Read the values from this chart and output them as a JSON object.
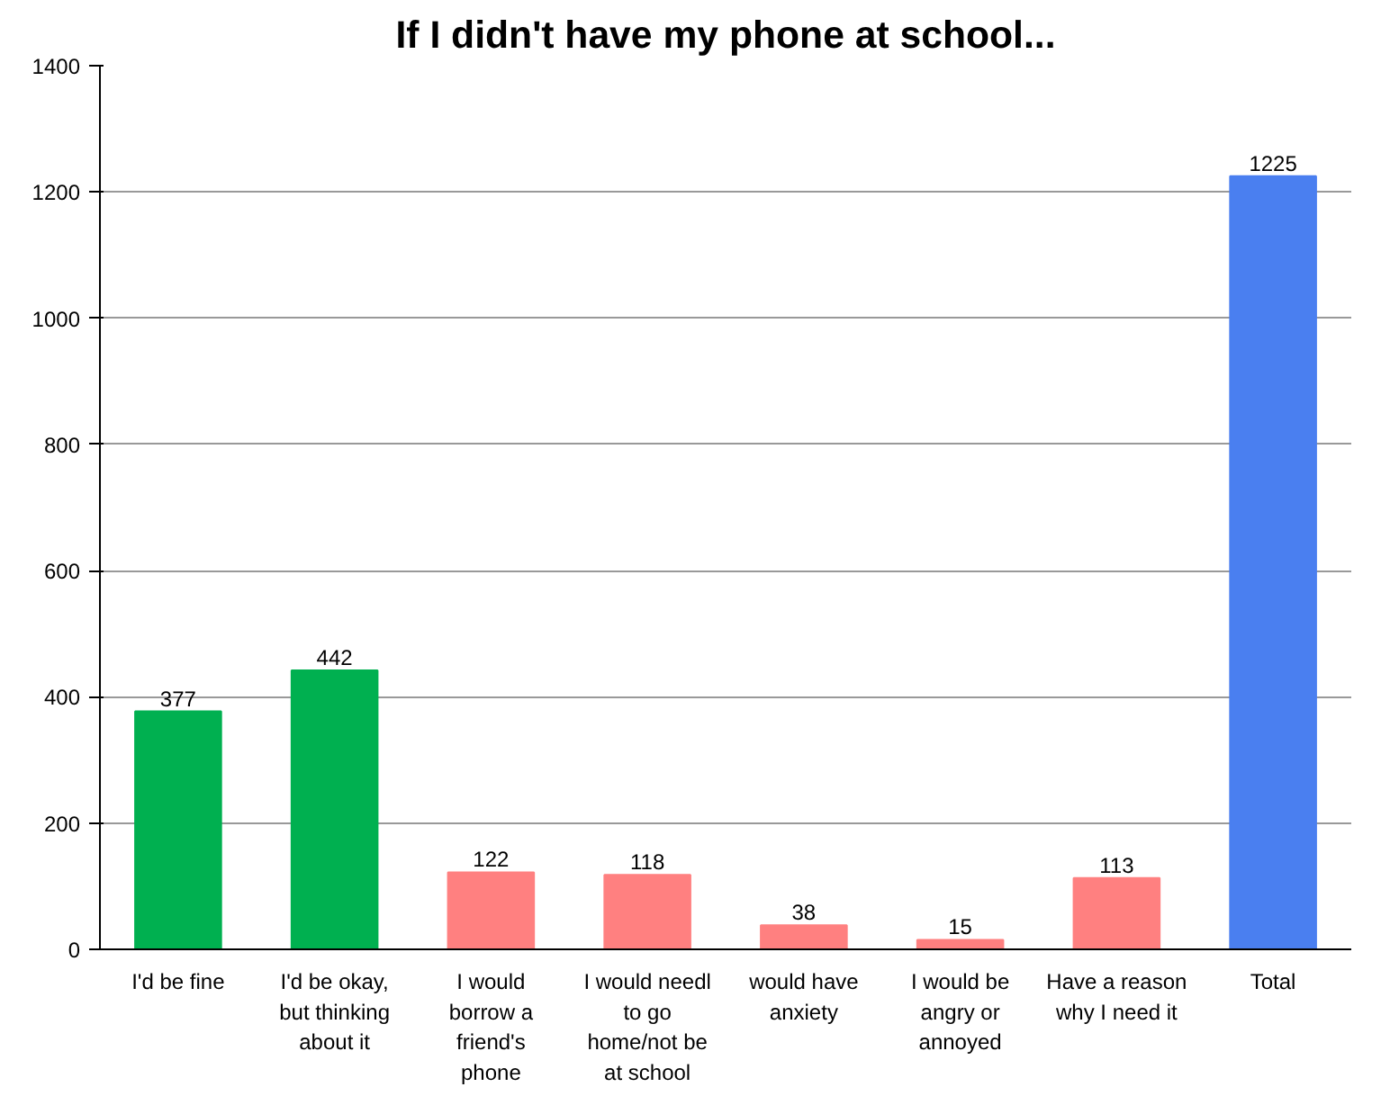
{
  "chart_data": {
    "type": "bar",
    "title": "If I didn't have my phone at school...",
    "categories": [
      "I'd be fine",
      "I'd be okay, but thinking about it",
      "I would borrow a friend's phone",
      "I would needl to go home/not be at school",
      "would have anxiety",
      "I would be angry or annoyed",
      "Have a reason why I need it",
      "Total"
    ],
    "values": [
      377,
      442,
      122,
      118,
      38,
      15,
      113,
      1225
    ],
    "colors": [
      "#00b050",
      "#00b050",
      "#ff8080",
      "#ff8080",
      "#ff8080",
      "#ff8080",
      "#ff8080",
      "#4a7ff0"
    ],
    "ylim": [
      0,
      1400
    ],
    "yticks": [
      0,
      200,
      400,
      600,
      800,
      1000,
      1200,
      1400
    ],
    "grid": "y",
    "data_labels": true
  }
}
